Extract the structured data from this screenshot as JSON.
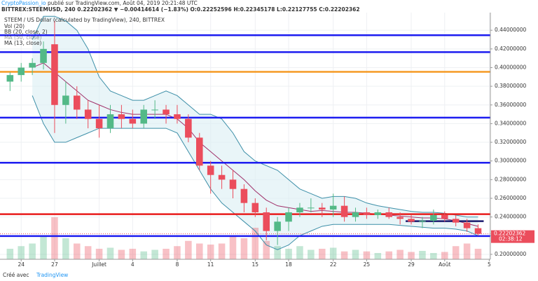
{
  "header": {
    "author": "CryptoPassion_io",
    "published": "publié sur TradingView.com, Août 04, 2019 20:21:48 UTC",
    "symbol_line": "BITTREX:STEEMUSD, 240  0.22202362 ▼ −0.00414614 (−1.83%) O:0.22252596 H:0.22345178 L:0.22127755 C:0.22202362"
  },
  "footer": {
    "made_with": "Créé avec",
    "brand": "TradingView"
  },
  "chart_data": {
    "type": "candlestick",
    "title": "STEEM / US Dollar (calculated by TradingView), 240, BITTREX",
    "up_color": "#53b987",
    "down_color": "#eb4d5c",
    "x": [
      -1,
      0,
      1,
      2,
      3,
      4,
      5,
      6,
      7,
      8,
      9,
      10,
      11,
      12,
      13,
      14,
      15,
      16,
      17,
      18,
      19,
      20,
      21,
      22,
      23,
      24,
      25,
      26,
      27,
      28,
      29,
      30,
      31,
      32,
      33,
      34,
      35,
      36,
      37,
      38,
      39,
      40,
      41
    ],
    "open": [
      0.385,
      0.392,
      0.4,
      0.405,
      0.425,
      0.36,
      0.37,
      0.355,
      0.345,
      0.335,
      0.35,
      0.345,
      0.34,
      0.355,
      0.355,
      0.35,
      0.345,
      0.325,
      0.295,
      0.285,
      0.28,
      0.27,
      0.255,
      0.245,
      0.225,
      0.235,
      0.245,
      0.25,
      0.25,
      0.248,
      0.252,
      0.24,
      0.245,
      0.242,
      0.245,
      0.24,
      0.238,
      0.235,
      0.236,
      0.242,
      0.238,
      0.234,
      0.228
    ],
    "high": [
      0.395,
      0.405,
      0.41,
      0.428,
      0.45,
      0.385,
      0.38,
      0.365,
      0.36,
      0.36,
      0.36,
      0.355,
      0.36,
      0.365,
      0.36,
      0.36,
      0.35,
      0.33,
      0.3,
      0.295,
      0.29,
      0.275,
      0.26,
      0.25,
      0.24,
      0.25,
      0.255,
      0.26,
      0.255,
      0.265,
      0.262,
      0.25,
      0.25,
      0.248,
      0.25,
      0.245,
      0.242,
      0.24,
      0.248,
      0.246,
      0.242,
      0.238,
      0.232
    ],
    "low": [
      0.375,
      0.385,
      0.392,
      0.398,
      0.33,
      0.34,
      0.345,
      0.335,
      0.325,
      0.33,
      0.335,
      0.335,
      0.335,
      0.345,
      0.34,
      0.34,
      0.32,
      0.29,
      0.265,
      0.27,
      0.26,
      0.245,
      0.24,
      0.215,
      0.21,
      0.225,
      0.24,
      0.245,
      0.24,
      0.24,
      0.235,
      0.235,
      0.238,
      0.238,
      0.238,
      0.232,
      0.232,
      0.228,
      0.232,
      0.235,
      0.23,
      0.224,
      0.22
    ],
    "close": [
      0.392,
      0.4,
      0.405,
      0.42,
      0.36,
      0.37,
      0.355,
      0.345,
      0.335,
      0.35,
      0.345,
      0.34,
      0.355,
      0.355,
      0.35,
      0.345,
      0.325,
      0.295,
      0.285,
      0.28,
      0.27,
      0.255,
      0.245,
      0.225,
      0.235,
      0.245,
      0.25,
      0.25,
      0.248,
      0.252,
      0.24,
      0.245,
      0.242,
      0.245,
      0.24,
      0.238,
      0.235,
      0.236,
      0.242,
      0.238,
      0.234,
      0.228,
      0.222
    ],
    "volume": {
      "name": "Vol (20)",
      "values": [
        20,
        25,
        30,
        45,
        80,
        40,
        30,
        25,
        20,
        22,
        18,
        20,
        15,
        18,
        20,
        25,
        35,
        30,
        28,
        30,
        45,
        40,
        60,
        35,
        25,
        20,
        25,
        18,
        20,
        22,
        15,
        18,
        15,
        12,
        15,
        18,
        14,
        16,
        12,
        14,
        25,
        30,
        20
      ]
    },
    "bollinger": {
      "name": "BB (20, close, 2)",
      "color": "#3d8fa8",
      "fill": "#dbeef3",
      "upper": [
        null,
        null,
        0.43,
        0.455,
        0.455,
        0.45,
        0.44,
        0.42,
        0.39,
        0.375,
        0.37,
        0.365,
        0.365,
        0.37,
        0.375,
        0.37,
        0.36,
        0.35,
        0.35,
        0.345,
        0.33,
        0.31,
        0.3,
        0.295,
        0.29,
        0.28,
        0.27,
        0.265,
        0.26,
        0.262,
        0.262,
        0.26,
        0.255,
        0.252,
        0.25,
        0.248,
        0.246,
        0.245,
        0.245,
        0.244,
        0.242,
        0.24,
        0.24
      ],
      "lower": [
        null,
        null,
        0.37,
        0.34,
        0.32,
        0.32,
        0.325,
        0.33,
        0.335,
        0.335,
        0.335,
        0.335,
        0.335,
        0.335,
        0.335,
        0.33,
        0.31,
        0.29,
        0.27,
        0.255,
        0.245,
        0.235,
        0.225,
        0.21,
        0.205,
        0.21,
        0.22,
        0.225,
        0.23,
        0.232,
        0.232,
        0.232,
        0.232,
        0.232,
        0.232,
        0.231,
        0.23,
        0.229,
        0.228,
        0.228,
        0.227,
        0.225,
        0.22
      ]
    },
    "ma50": {
      "name": "MA (50, close)"
    },
    "ma13": {
      "name": "MA (13, close)",
      "color": "#a0306a",
      "values": [
        null,
        null,
        0.4,
        0.405,
        0.395,
        0.385,
        0.375,
        0.365,
        0.36,
        0.355,
        0.352,
        0.35,
        0.35,
        0.35,
        0.35,
        0.345,
        0.335,
        0.32,
        0.31,
        0.3,
        0.29,
        0.28,
        0.268,
        0.258,
        0.252,
        0.25,
        0.248,
        0.246,
        0.247,
        0.246,
        0.245,
        0.245,
        0.244,
        0.243,
        0.242,
        0.241,
        0.24,
        0.239,
        0.239,
        0.238,
        0.236,
        0.233,
        0.23
      ]
    },
    "levels": [
      {
        "value": 0.4347,
        "color": "#1c1cf0"
      },
      {
        "value": 0.4166,
        "color": "#1c1cf0"
      },
      {
        "value": 0.3955,
        "color": "#f59a23"
      },
      {
        "value": 0.3464,
        "color": "#1c1cf0"
      },
      {
        "value": 0.2981,
        "color": "#1c1cf0"
      },
      {
        "value": 0.243,
        "color": "#e81c1c"
      },
      {
        "value": 0.2196,
        "color": "#1c1cf0"
      },
      {
        "value": 0.2355,
        "color": "#1a1a6e",
        "x_range": [
          34.5,
          41.5
        ]
      }
    ],
    "last_price_label": "0.22202362",
    "countdown": "02:38:12",
    "xlim": [
      -1.9,
      42.1
    ],
    "ylim": [
      0.1947,
      0.4589
    ],
    "yticks": [
      {
        "value": 0.2,
        "label": "0.20000000"
      },
      {
        "value": 0.22,
        "label": "0.22000000"
      },
      {
        "value": 0.24,
        "label": "0.24000000"
      },
      {
        "value": 0.26,
        "label": "0.26000000"
      },
      {
        "value": 0.28,
        "label": "0.28000000"
      },
      {
        "value": 0.3,
        "label": "0.30000000"
      },
      {
        "value": 0.32,
        "label": "0.32000000"
      },
      {
        "value": 0.34,
        "label": "0.34000000"
      },
      {
        "value": 0.36,
        "label": "0.36000000"
      },
      {
        "value": 0.38,
        "label": "0.38000000"
      },
      {
        "value": 0.4,
        "label": "0.40000000"
      },
      {
        "value": 0.42,
        "label": "0.42000000"
      },
      {
        "value": 0.44,
        "label": "0.44000000"
      }
    ],
    "xticks": [
      {
        "value": 0,
        "label": "24"
      },
      {
        "value": 3,
        "label": "27"
      },
      {
        "value": 7,
        "label": "Juillet"
      },
      {
        "value": 10,
        "label": "4"
      },
      {
        "value": 14,
        "label": "8"
      },
      {
        "value": 17,
        "label": "11"
      },
      {
        "value": 21,
        "label": "15"
      },
      {
        "value": 24,
        "label": "18"
      },
      {
        "value": 28,
        "label": "22"
      },
      {
        "value": 31,
        "label": "25"
      },
      {
        "value": 35,
        "label": "29"
      },
      {
        "value": 38,
        "label": "Août"
      },
      {
        "value": 42,
        "label": "5"
      }
    ],
    "grid": true
  }
}
